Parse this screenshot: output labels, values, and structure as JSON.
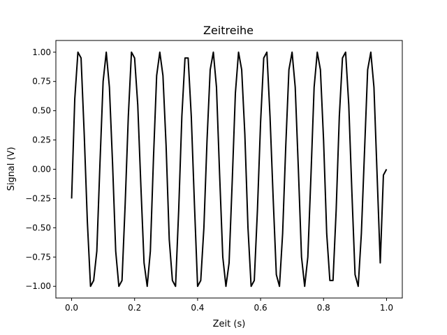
{
  "chart_data": {
    "type": "line",
    "title": "Zeitreihe",
    "xlabel": "Zeit  (s)",
    "ylabel": "Signal  (V)",
    "xlim": [
      -0.05,
      1.05
    ],
    "ylim": [
      -1.1,
      1.1
    ],
    "grid": false,
    "legend": "none",
    "x_ticks": [
      {
        "value": 0.0,
        "label": "0.0"
      },
      {
        "value": 0.2,
        "label": "0.2"
      },
      {
        "value": 0.4,
        "label": "0.4"
      },
      {
        "value": 0.6,
        "label": "0.6"
      },
      {
        "value": 0.8,
        "label": "0.8"
      },
      {
        "value": 1.0,
        "label": "1.0"
      }
    ],
    "y_ticks": [
      {
        "value": -1.0,
        "label": "−1.00"
      },
      {
        "value": -0.75,
        "label": "−0.75"
      },
      {
        "value": -0.5,
        "label": "−0.50"
      },
      {
        "value": -0.25,
        "label": "−0.25"
      },
      {
        "value": 0.0,
        "label": "0.00"
      },
      {
        "value": 0.25,
        "label": "0.25"
      },
      {
        "value": 0.5,
        "label": "0.50"
      },
      {
        "value": 0.75,
        "label": "0.75"
      },
      {
        "value": 1.0,
        "label": "1.00"
      }
    ],
    "series": [
      {
        "color": "#000000",
        "x": [
          0.0,
          0.01,
          0.02,
          0.03,
          0.04,
          0.05,
          0.06,
          0.07,
          0.08,
          0.09,
          0.1,
          0.11,
          0.12,
          0.13,
          0.14,
          0.15,
          0.16,
          0.17,
          0.18,
          0.19,
          0.2,
          0.21,
          0.22,
          0.23,
          0.24,
          0.25,
          0.26,
          0.27,
          0.28,
          0.29,
          0.3,
          0.31,
          0.32,
          0.33,
          0.34,
          0.35,
          0.36,
          0.37,
          0.38,
          0.39,
          0.4,
          0.41,
          0.42,
          0.43,
          0.44,
          0.45,
          0.46,
          0.47,
          0.48,
          0.49,
          0.5,
          0.51,
          0.52,
          0.53,
          0.54,
          0.55,
          0.56,
          0.57,
          0.58,
          0.59,
          0.6,
          0.61,
          0.62,
          0.63,
          0.64,
          0.65,
          0.66,
          0.67,
          0.68,
          0.69,
          0.7,
          0.71,
          0.72,
          0.73,
          0.74,
          0.75,
          0.76,
          0.77,
          0.78,
          0.79,
          0.8,
          0.81,
          0.82,
          0.83,
          0.84,
          0.85,
          0.86,
          0.87,
          0.88,
          0.89,
          0.9,
          0.91,
          0.92,
          0.93,
          0.94,
          0.95,
          0.96,
          0.97,
          0.98,
          0.99,
          1.0
        ],
        "y": [
          -0.25,
          0.6,
          1.0,
          0.95,
          0.3,
          -0.45,
          -1.0,
          -0.95,
          -0.7,
          0.05,
          0.75,
          1.0,
          0.7,
          0.05,
          -0.7,
          -1.0,
          -0.95,
          -0.3,
          0.45,
          1.0,
          0.95,
          0.55,
          -0.15,
          -0.8,
          -1.0,
          -0.7,
          0.1,
          0.8,
          1.0,
          0.8,
          0.2,
          -0.6,
          -0.95,
          -1.0,
          -0.35,
          0.45,
          0.95,
          0.95,
          0.45,
          -0.3,
          -1.0,
          -0.95,
          -0.5,
          0.25,
          0.85,
          1.0,
          0.7,
          -0.05,
          -0.75,
          -1.0,
          -0.8,
          -0.1,
          0.65,
          1.0,
          0.85,
          0.3,
          -0.5,
          -1.0,
          -0.95,
          -0.35,
          0.4,
          0.95,
          1.0,
          0.45,
          -0.25,
          -0.9,
          -1.0,
          -0.55,
          0.2,
          0.85,
          1.0,
          0.7,
          0.0,
          -0.75,
          -1.0,
          -0.75,
          -0.05,
          0.7,
          1.0,
          0.85,
          0.25,
          -0.55,
          -0.95,
          -0.95,
          -0.35,
          0.45,
          0.95,
          1.0,
          0.55,
          -0.2,
          -0.9,
          -1.0,
          -0.55,
          0.15,
          0.85,
          1.0,
          0.7,
          -0.05,
          -0.8,
          -0.05,
          0.0
        ]
      }
    ]
  }
}
